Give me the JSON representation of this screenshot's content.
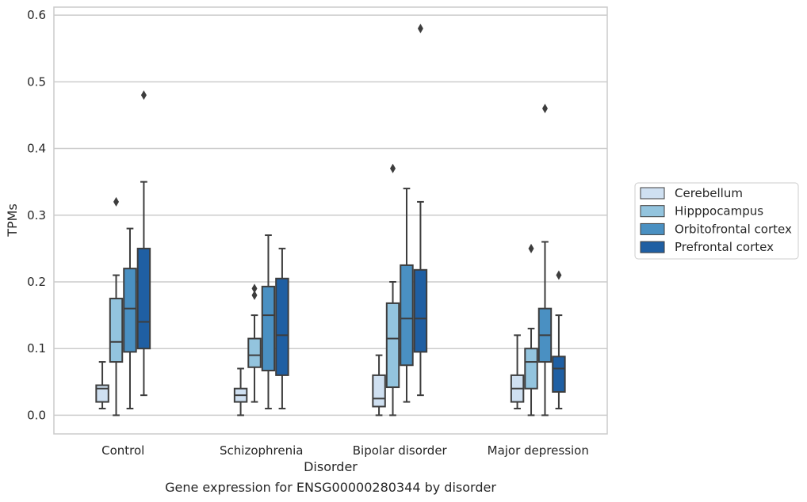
{
  "chart_data": {
    "type": "box",
    "title": "Gene expression for ENSG00000280344 by disorder",
    "xlabel": "Disorder",
    "ylabel": "TPMs",
    "ylim": [
      -0.028,
      0.612
    ],
    "yticks": [
      0.0,
      0.1,
      0.2,
      0.3,
      0.4,
      0.5,
      0.6
    ],
    "ytick_labels": [
      "0.0",
      "0.1",
      "0.2",
      "0.3",
      "0.4",
      "0.5",
      "0.6"
    ],
    "grid": "horizontal",
    "legend_position": "right",
    "categories": [
      "Control",
      "Schizophrenia",
      "Bipolar disorder",
      "Major depression"
    ],
    "series": [
      {
        "name": "Cerebellum",
        "color": "#cfe0f1",
        "boxes": [
          {
            "whislo": 0.01,
            "q1": 0.02,
            "med": 0.04,
            "q3": 0.045,
            "whishi": 0.08,
            "fliers": []
          },
          {
            "whislo": 0.0,
            "q1": 0.02,
            "med": 0.03,
            "q3": 0.04,
            "whishi": 0.07,
            "fliers": []
          },
          {
            "whislo": 0.0,
            "q1": 0.013,
            "med": 0.025,
            "q3": 0.06,
            "whishi": 0.09,
            "fliers": []
          },
          {
            "whislo": 0.01,
            "q1": 0.02,
            "med": 0.04,
            "q3": 0.06,
            "whishi": 0.12,
            "fliers": []
          }
        ]
      },
      {
        "name": "Hipppocampus",
        "color": "#93c4de",
        "boxes": [
          {
            "whislo": 0.0,
            "q1": 0.08,
            "med": 0.11,
            "q3": 0.175,
            "whishi": 0.21,
            "fliers": [
              0.32
            ]
          },
          {
            "whislo": 0.02,
            "q1": 0.072,
            "med": 0.09,
            "q3": 0.115,
            "whishi": 0.15,
            "fliers": [
              0.18,
              0.19
            ]
          },
          {
            "whislo": 0.0,
            "q1": 0.042,
            "med": 0.115,
            "q3": 0.168,
            "whishi": 0.2,
            "fliers": [
              0.37
            ]
          },
          {
            "whislo": 0.0,
            "q1": 0.04,
            "med": 0.08,
            "q3": 0.1,
            "whishi": 0.13,
            "fliers": [
              0.25
            ]
          }
        ]
      },
      {
        "name": "Orbitofrontal cortex",
        "color": "#4a90c2",
        "boxes": [
          {
            "whislo": 0.01,
            "q1": 0.095,
            "med": 0.16,
            "q3": 0.22,
            "whishi": 0.28,
            "fliers": []
          },
          {
            "whislo": 0.01,
            "q1": 0.067,
            "med": 0.15,
            "q3": 0.193,
            "whishi": 0.27,
            "fliers": []
          },
          {
            "whislo": 0.02,
            "q1": 0.075,
            "med": 0.145,
            "q3": 0.225,
            "whishi": 0.34,
            "fliers": []
          },
          {
            "whislo": 0.0,
            "q1": 0.08,
            "med": 0.12,
            "q3": 0.16,
            "whishi": 0.26,
            "fliers": [
              0.46
            ]
          }
        ]
      },
      {
        "name": "Prefrontal cortex",
        "color": "#1f5fa3",
        "boxes": [
          {
            "whislo": 0.03,
            "q1": 0.1,
            "med": 0.14,
            "q3": 0.25,
            "whishi": 0.35,
            "fliers": [
              0.48
            ]
          },
          {
            "whislo": 0.01,
            "q1": 0.06,
            "med": 0.12,
            "q3": 0.205,
            "whishi": 0.25,
            "fliers": []
          },
          {
            "whislo": 0.03,
            "q1": 0.095,
            "med": 0.145,
            "q3": 0.218,
            "whishi": 0.32,
            "fliers": [
              0.58
            ]
          },
          {
            "whislo": 0.01,
            "q1": 0.035,
            "med": 0.07,
            "q3": 0.088,
            "whishi": 0.15,
            "fliers": [
              0.21
            ]
          }
        ]
      }
    ]
  }
}
